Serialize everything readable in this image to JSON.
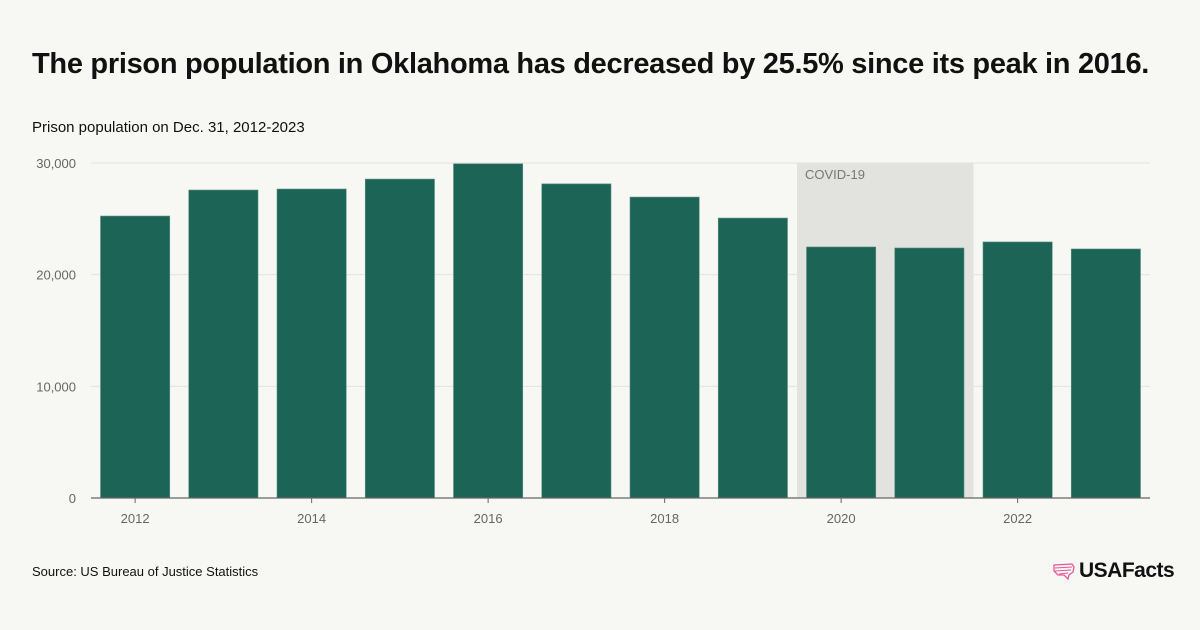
{
  "title": "The prison population in Oklahoma has decreased by 25.5% since its peak in 2016.",
  "subtitle": "Prison population on Dec. 31, 2012-2023",
  "source": "Source: US Bureau of Justice Statistics",
  "logo": {
    "text": "USAFacts",
    "icon": "us-map-flag-icon",
    "icon_color": "#e8559a"
  },
  "chart_data": {
    "type": "bar",
    "categories": [
      "2012",
      "2013",
      "2014",
      "2015",
      "2016",
      "2017",
      "2018",
      "2019",
      "2020",
      "2021",
      "2022",
      "2023"
    ],
    "values": [
      25250,
      27580,
      27670,
      28560,
      29930,
      28130,
      26950,
      25070,
      22480,
      22390,
      22930,
      22300
    ],
    "x_tick_labels": [
      "2012",
      "2014",
      "2016",
      "2018",
      "2020",
      "2022"
    ],
    "y_ticks": [
      0,
      10000,
      20000,
      30000
    ],
    "y_tick_labels": [
      "0",
      "10,000",
      "20,000",
      "30,000"
    ],
    "ylim": [
      0,
      30000
    ],
    "grid": true,
    "bar_color": "#1b6456",
    "annotation": {
      "label": "COVID-19",
      "from": "2020",
      "to": "2021",
      "color": "#e2e2de"
    }
  }
}
